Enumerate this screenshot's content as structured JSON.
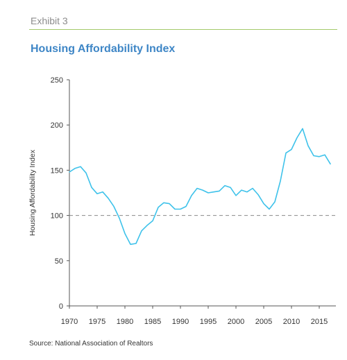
{
  "header": {
    "exhibit": "Exhibit 3",
    "title": "Housing Affordability Index"
  },
  "footer": {
    "source": "Source: National Association of Realtors"
  },
  "colors": {
    "line": "#3ec2ea",
    "reference": "#8a8a8a",
    "rule": "#a4c96a",
    "title": "#3e86c6"
  },
  "chart_data": {
    "type": "line",
    "title": "Housing Affordability Index",
    "xlabel": "",
    "ylabel": "Housing Affordability Index",
    "xlim": [
      1970,
      2018
    ],
    "ylim": [
      0,
      250
    ],
    "xticks": [
      1970,
      1975,
      1980,
      1985,
      1990,
      1995,
      2000,
      2005,
      2010,
      2015
    ],
    "yticks": [
      0,
      50,
      100,
      150,
      200,
      250
    ],
    "grid": false,
    "reference_line": {
      "y": 100,
      "style": "dashed"
    },
    "series": [
      {
        "x": [
          1970,
          1971,
          1972,
          1973,
          1974,
          1975,
          1976,
          1977,
          1978,
          1979,
          1980,
          1981,
          1982,
          1983,
          1984,
          1985,
          1986,
          1987,
          1988,
          1989,
          1990,
          1991,
          1992,
          1993,
          1994,
          1995,
          1996,
          1997,
          1998,
          1999,
          2000,
          2001,
          2002,
          2003,
          2004,
          2005,
          2006,
          2007,
          2008,
          2009,
          2010,
          2011,
          2012,
          2013,
          2014,
          2015,
          2016,
          2017
        ],
        "y": [
          148,
          152,
          154,
          147,
          131,
          124,
          126,
          119,
          110,
          97,
          80,
          68,
          69,
          83,
          89,
          94,
          109,
          114,
          113,
          107,
          107,
          110,
          122,
          130,
          128,
          125,
          126,
          127,
          133,
          131,
          122,
          128,
          126,
          130,
          123,
          113,
          107,
          115,
          138,
          169,
          173,
          186,
          196,
          177,
          166,
          165,
          167,
          157
        ]
      }
    ]
  }
}
